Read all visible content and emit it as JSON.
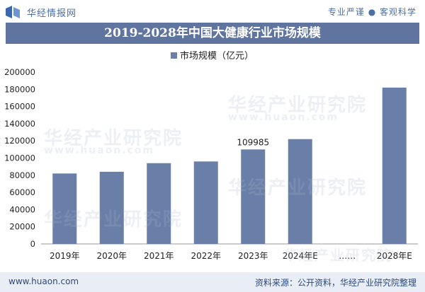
{
  "header": {
    "brand": "华经情报网",
    "slogan": "专业严谨 ● 客观科学"
  },
  "footer": {
    "website": "www.huaon.com",
    "source": "资料来源：公开资料，华经产业研究院整理"
  },
  "watermark": {
    "text": "华经产业研究院",
    "domain": "www.huaon.com"
  },
  "colors": {
    "bar": "#6a7fa8",
    "title_bg": "#5f749f",
    "text": "#222222"
  },
  "chart_data": {
    "type": "bar",
    "title": "2019-2028年中国大健康行业市场规模",
    "legend": "市场规模（亿元）",
    "legend_position": "top-center",
    "categories": [
      "2019年",
      "2020年",
      "2021年",
      "2022年",
      "2023年",
      "2024年E",
      "……",
      "2028年E"
    ],
    "values": [
      82000,
      84000,
      94000,
      96000,
      109985,
      122000,
      null,
      182000
    ],
    "data_labels": {
      "2023年": "109985"
    },
    "ylim": [
      0,
      200000
    ],
    "yticks": [
      "0",
      "20000",
      "40000",
      "60000",
      "80000",
      "100000",
      "120000",
      "140000",
      "160000",
      "180000",
      "200000"
    ],
    "grid": false
  }
}
